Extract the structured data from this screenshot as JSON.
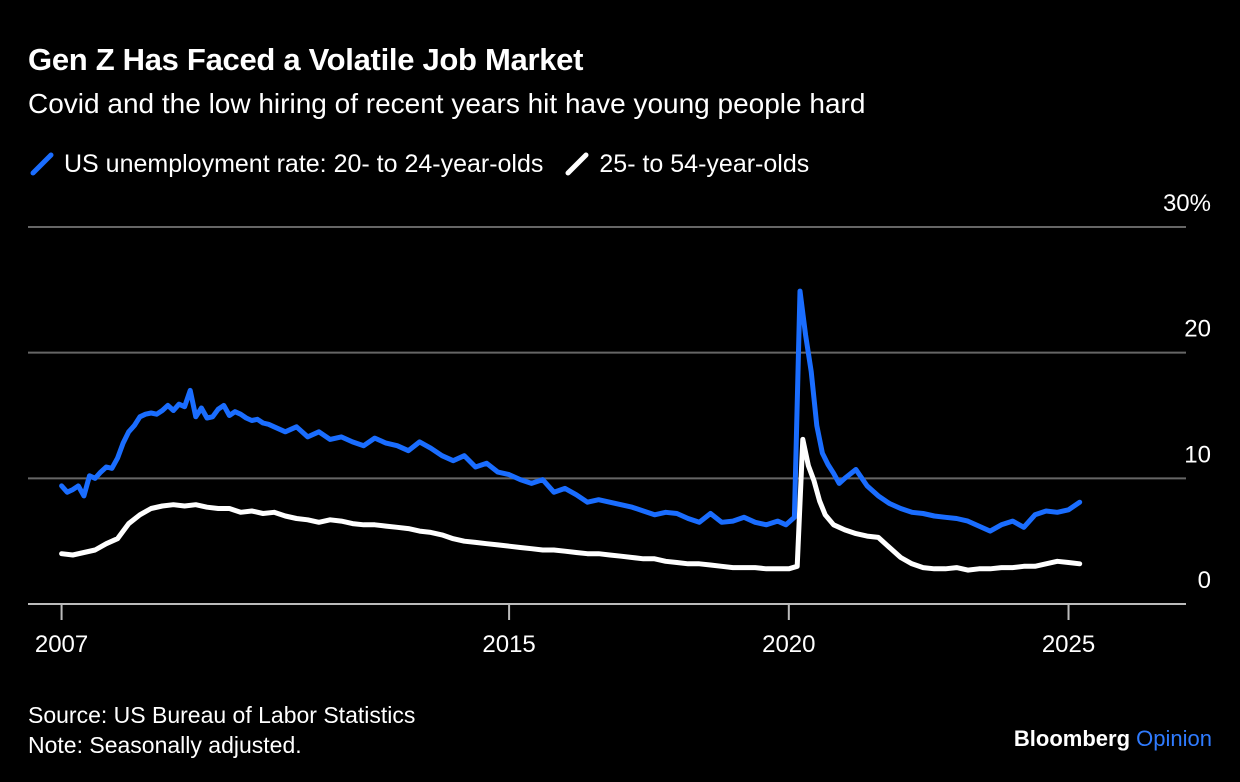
{
  "title": "Gen Z Has Faced a Volatile Job Market",
  "subtitle": "Covid and the low hiring of recent years hit have young people hard",
  "source": "Source: US Bureau of Labor Statistics",
  "note": "Note: Seasonally adjusted.",
  "brand": {
    "name": "Bloomberg",
    "accent": "Opinion",
    "accent_color": "#2f7bff"
  },
  "colors": {
    "background": "#000000",
    "gridline": "#666666",
    "text": "#ffffff"
  },
  "chart_data": {
    "type": "line",
    "title": "Gen Z Has Faced a Volatile Job Market",
    "subtitle": "Covid and the low hiring of recent years hit have young people hard",
    "x_range": [
      2007,
      2026.3
    ],
    "xlim": [
      2006.4,
      2027.1
    ],
    "ylim": [
      0,
      30
    ],
    "y_ticks": [
      {
        "value": 0,
        "label": "0"
      },
      {
        "value": 10,
        "label": "10"
      },
      {
        "value": 20,
        "label": "20"
      },
      {
        "value": 30,
        "label": "30%"
      }
    ],
    "x_ticks": [
      {
        "value": 2007,
        "label": "2007"
      },
      {
        "value": 2015,
        "label": "2015"
      },
      {
        "value": 2020,
        "label": "2020"
      },
      {
        "value": 2025,
        "label": "2025"
      }
    ],
    "grid": true,
    "legend_position": "top-left",
    "series": [
      {
        "name": "US unemployment rate: 20- to 24-year-olds",
        "color": "#1a6dff",
        "x": [
          2007.0,
          2007.1,
          2007.2,
          2007.3,
          2007.4,
          2007.5,
          2007.6,
          2007.7,
          2007.8,
          2007.9,
          2008.0,
          2008.1,
          2008.2,
          2008.3,
          2008.4,
          2008.5,
          2008.6,
          2008.7,
          2008.8,
          2008.9,
          2009.0,
          2009.1,
          2009.2,
          2009.3,
          2009.4,
          2009.5,
          2009.6,
          2009.7,
          2009.8,
          2009.9,
          2010.0,
          2010.1,
          2010.2,
          2010.3,
          2010.4,
          2010.5,
          2010.6,
          2010.7,
          2010.8,
          2010.9,
          2011.0,
          2011.2,
          2011.4,
          2011.6,
          2011.8,
          2012.0,
          2012.2,
          2012.4,
          2012.6,
          2012.8,
          2013.0,
          2013.2,
          2013.4,
          2013.6,
          2013.8,
          2014.0,
          2014.2,
          2014.4,
          2014.6,
          2014.8,
          2015.0,
          2015.2,
          2015.4,
          2015.6,
          2015.8,
          2016.0,
          2016.2,
          2016.4,
          2016.6,
          2016.8,
          2017.0,
          2017.2,
          2017.4,
          2017.6,
          2017.8,
          2018.0,
          2018.2,
          2018.4,
          2018.6,
          2018.8,
          2019.0,
          2019.2,
          2019.4,
          2019.6,
          2019.8,
          2019.95,
          2020.1,
          2020.2,
          2020.3,
          2020.4,
          2020.5,
          2020.6,
          2020.7,
          2020.8,
          2020.9,
          2021.0,
          2021.2,
          2021.4,
          2021.6,
          2021.8,
          2022.0,
          2022.2,
          2022.4,
          2022.6,
          2022.8,
          2023.0,
          2023.2,
          2023.4,
          2023.6,
          2023.8,
          2024.0,
          2024.2,
          2024.4,
          2024.6,
          2024.8,
          2025.0,
          2025.2
        ],
        "values": [
          9.4,
          8.9,
          9.1,
          9.4,
          8.6,
          10.2,
          10.0,
          10.5,
          10.9,
          10.8,
          11.6,
          12.8,
          13.7,
          14.2,
          14.9,
          15.1,
          15.2,
          15.1,
          15.4,
          15.8,
          15.4,
          15.9,
          15.7,
          17.0,
          14.9,
          15.6,
          14.8,
          14.9,
          15.5,
          15.8,
          15.0,
          15.3,
          15.1,
          14.8,
          14.6,
          14.7,
          14.4,
          14.3,
          14.1,
          13.9,
          13.7,
          14.1,
          13.3,
          13.7,
          13.1,
          13.3,
          12.9,
          12.6,
          13.2,
          12.8,
          12.6,
          12.2,
          12.9,
          12.4,
          11.8,
          11.4,
          11.8,
          10.9,
          11.2,
          10.5,
          10.3,
          9.9,
          9.6,
          9.9,
          8.9,
          9.2,
          8.7,
          8.1,
          8.3,
          8.1,
          7.9,
          7.7,
          7.4,
          7.1,
          7.3,
          7.2,
          6.8,
          6.5,
          7.2,
          6.5,
          6.6,
          6.9,
          6.5,
          6.3,
          6.6,
          6.3,
          6.9,
          24.9,
          21.4,
          18.5,
          14.2,
          12.0,
          11.1,
          10.4,
          9.6,
          10.0,
          10.7,
          9.4,
          8.6,
          8.0,
          7.6,
          7.3,
          7.2,
          7.0,
          6.9,
          6.8,
          6.6,
          6.2,
          5.8,
          6.3,
          6.6,
          6.1,
          7.1,
          7.4,
          7.3,
          7.5,
          8.1
        ]
      },
      {
        "name": "25- to 54-year-olds",
        "color": "#ffffff",
        "x": [
          2007.0,
          2007.2,
          2007.4,
          2007.6,
          2007.8,
          2008.0,
          2008.2,
          2008.4,
          2008.6,
          2008.8,
          2009.0,
          2009.2,
          2009.4,
          2009.6,
          2009.8,
          2010.0,
          2010.2,
          2010.4,
          2010.6,
          2010.8,
          2011.0,
          2011.2,
          2011.4,
          2011.6,
          2011.8,
          2012.0,
          2012.2,
          2012.4,
          2012.6,
          2012.8,
          2013.0,
          2013.2,
          2013.4,
          2013.6,
          2013.8,
          2014.0,
          2014.2,
          2014.4,
          2014.6,
          2014.8,
          2015.0,
          2015.2,
          2015.4,
          2015.6,
          2015.8,
          2016.0,
          2016.2,
          2016.4,
          2016.6,
          2016.8,
          2017.0,
          2017.2,
          2017.4,
          2017.6,
          2017.8,
          2018.0,
          2018.2,
          2018.4,
          2018.6,
          2018.8,
          2019.0,
          2019.2,
          2019.4,
          2019.6,
          2019.8,
          2020.0,
          2020.15,
          2020.25,
          2020.35,
          2020.45,
          2020.55,
          2020.65,
          2020.8,
          2021.0,
          2021.2,
          2021.4,
          2021.6,
          2021.8,
          2022.0,
          2022.2,
          2022.4,
          2022.6,
          2022.8,
          2023.0,
          2023.2,
          2023.4,
          2023.6,
          2023.8,
          2024.0,
          2024.2,
          2024.4,
          2024.6,
          2024.8,
          2025.0,
          2025.2
        ],
        "values": [
          4.0,
          3.9,
          4.1,
          4.3,
          4.8,
          5.2,
          6.4,
          7.1,
          7.6,
          7.8,
          7.9,
          7.8,
          7.9,
          7.7,
          7.6,
          7.6,
          7.3,
          7.4,
          7.2,
          7.3,
          7.0,
          6.8,
          6.7,
          6.5,
          6.7,
          6.6,
          6.4,
          6.3,
          6.3,
          6.2,
          6.1,
          6.0,
          5.8,
          5.7,
          5.5,
          5.2,
          5.0,
          4.9,
          4.8,
          4.7,
          4.6,
          4.5,
          4.4,
          4.3,
          4.3,
          4.2,
          4.1,
          4.0,
          4.0,
          3.9,
          3.8,
          3.7,
          3.6,
          3.6,
          3.4,
          3.3,
          3.2,
          3.2,
          3.1,
          3.0,
          2.9,
          2.9,
          2.9,
          2.8,
          2.8,
          2.8,
          3.0,
          13.1,
          11.0,
          9.8,
          8.2,
          7.1,
          6.3,
          5.9,
          5.6,
          5.4,
          5.3,
          4.5,
          3.7,
          3.2,
          2.9,
          2.8,
          2.8,
          2.9,
          2.7,
          2.8,
          2.8,
          2.9,
          2.9,
          3.0,
          3.0,
          3.2,
          3.4,
          3.3,
          3.2
        ]
      }
    ]
  }
}
